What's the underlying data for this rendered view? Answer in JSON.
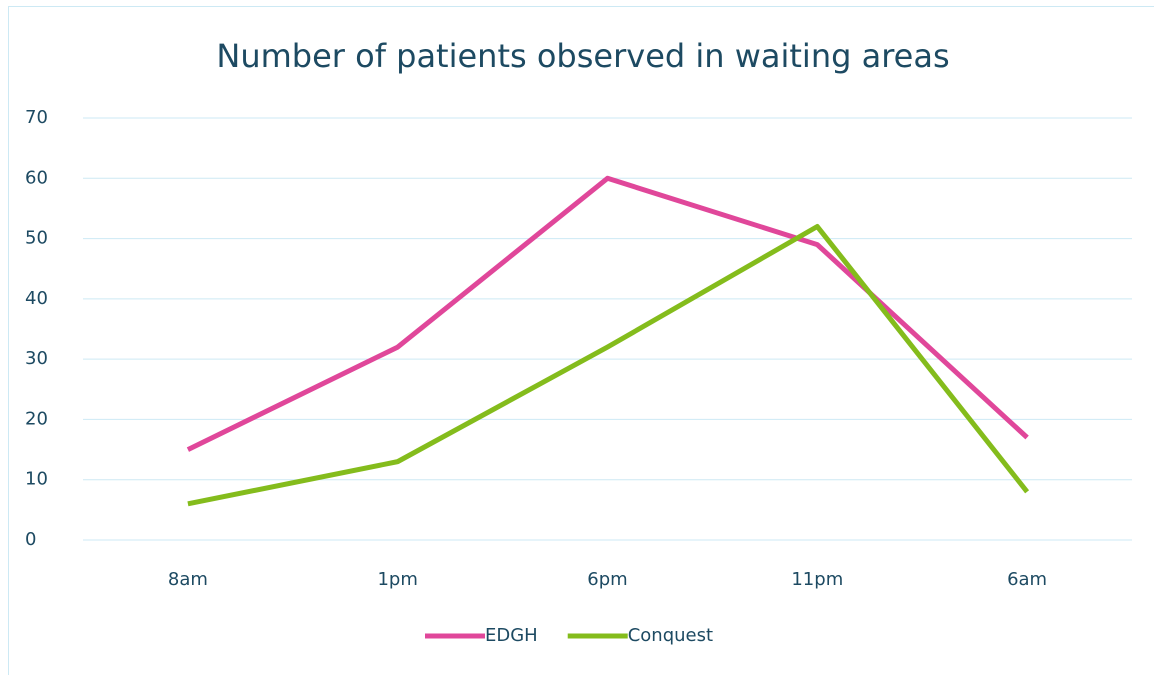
{
  "chart_data": {
    "type": "line",
    "title": "Number of patients observed in waiting areas",
    "categories": [
      "8am",
      "1pm",
      "6pm",
      "11pm",
      "6am"
    ],
    "series": [
      {
        "name": "EDGH",
        "color": "#e0479a",
        "values": [
          15,
          32,
          60,
          49,
          17
        ]
      },
      {
        "name": "Conquest",
        "color": "#84bc1c",
        "values": [
          6,
          13,
          32,
          52,
          8
        ]
      }
    ],
    "ylim": [
      0,
      70
    ],
    "yticks": [
      0,
      10,
      20,
      30,
      40,
      50,
      60,
      70
    ],
    "grid": true,
    "legend": "bottom"
  }
}
